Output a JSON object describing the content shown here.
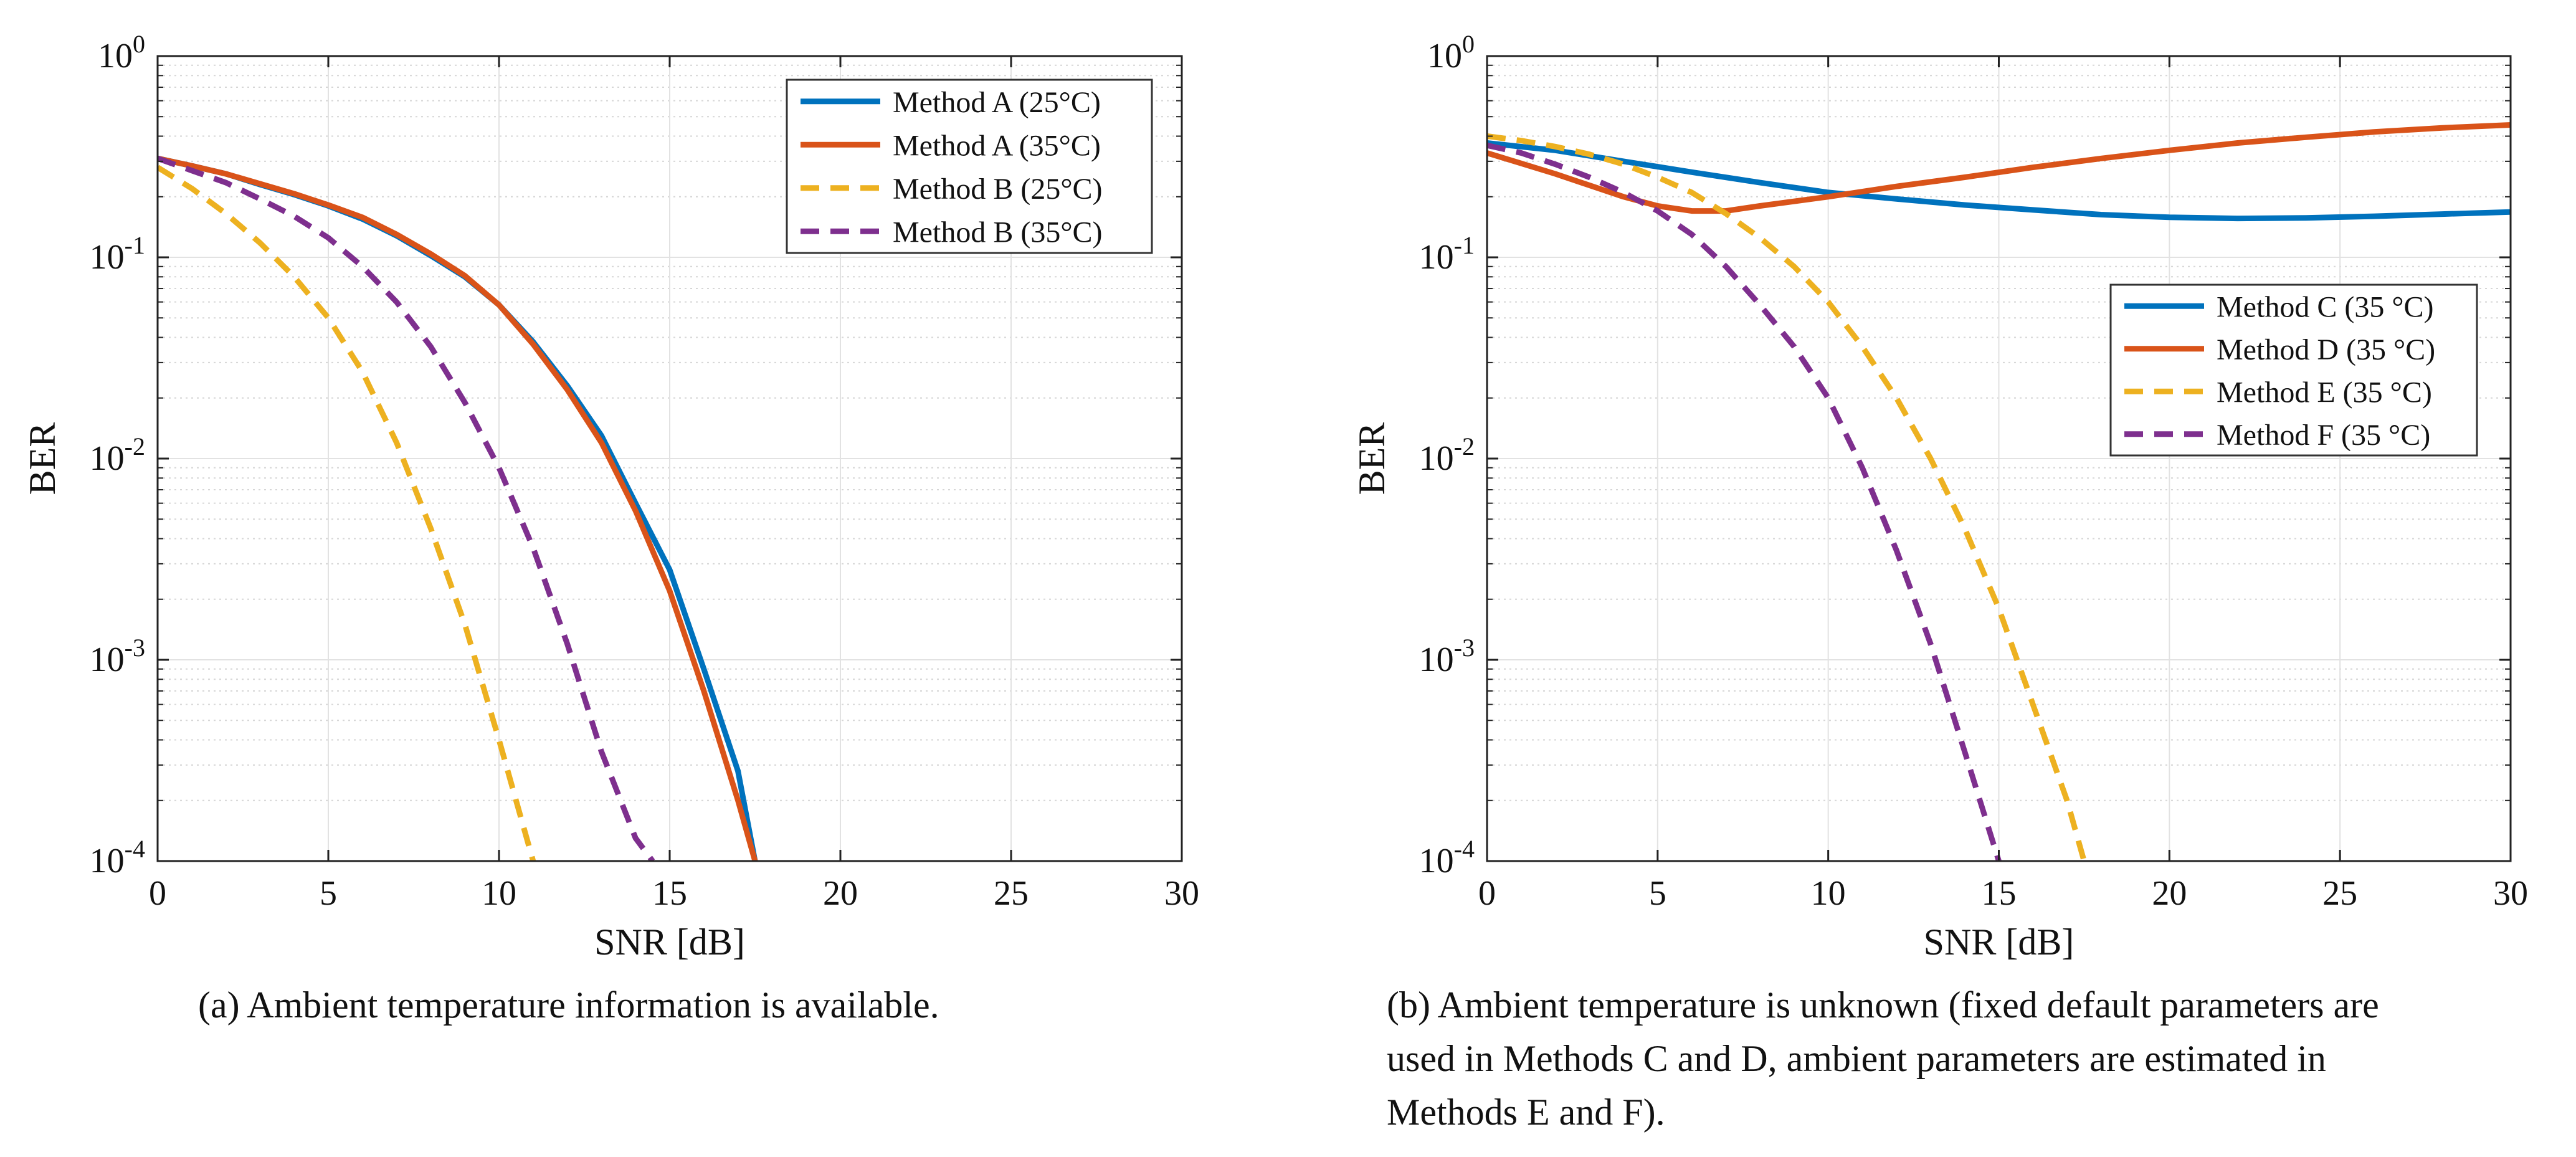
{
  "chart_data": [
    {
      "type": "line",
      "id": "a",
      "xlabel": "SNR [dB]",
      "ylabel": "BER",
      "xlim": [
        0,
        30
      ],
      "ylim": [
        0.0001,
        1
      ],
      "yscale": "log",
      "grid": true,
      "xticks": [
        "0",
        "5",
        "10",
        "15",
        "20",
        "25",
        "30"
      ],
      "yticks": [
        {
          "base": "10",
          "exp": "-4"
        },
        {
          "base": "10",
          "exp": "-3"
        },
        {
          "base": "10",
          "exp": "-2"
        },
        {
          "base": "10",
          "exp": "-1"
        },
        {
          "base": "10",
          "exp": "0"
        }
      ],
      "legend_position": "top-right",
      "series": [
        {
          "name": "Method A (25°C)",
          "color": "#0072BD",
          "dash": "solid",
          "x": [
            0,
            1,
            2,
            3,
            4,
            5,
            6,
            7,
            8,
            9,
            10,
            11,
            12,
            13,
            14,
            15,
            16,
            17,
            17.5
          ],
          "y": [
            0.31,
            0.285,
            0.26,
            0.23,
            0.205,
            0.18,
            0.155,
            0.128,
            0.102,
            0.08,
            0.058,
            0.038,
            0.023,
            0.013,
            0.006,
            0.0028,
            0.0009,
            0.00028,
            0.0001
          ]
        },
        {
          "name": "Method A (35°C)",
          "color": "#D95319",
          "dash": "solid",
          "x": [
            0,
            1,
            2,
            3,
            4,
            5,
            6,
            7,
            8,
            9,
            10,
            11,
            12,
            13,
            14,
            15,
            16,
            17,
            17.5
          ],
          "y": [
            0.31,
            0.285,
            0.26,
            0.232,
            0.207,
            0.182,
            0.158,
            0.13,
            0.104,
            0.081,
            0.058,
            0.037,
            0.022,
            0.012,
            0.0055,
            0.0022,
            0.0007,
            0.0002,
            0.0001
          ]
        },
        {
          "name": "Method B (25°C)",
          "color": "#EDB120",
          "dash": "dashed",
          "x": [
            0,
            1,
            2,
            3,
            4,
            5,
            6,
            7,
            8,
            9,
            10,
            11
          ],
          "y": [
            0.28,
            0.22,
            0.165,
            0.118,
            0.08,
            0.05,
            0.027,
            0.012,
            0.0045,
            0.0015,
            0.0004,
            0.0001
          ]
        },
        {
          "name": "Method B (35°C)",
          "color": "#7E2F8E",
          "dash": "dashed",
          "x": [
            0,
            1,
            2,
            3,
            4,
            5,
            6,
            7,
            8,
            9,
            10,
            11,
            12,
            13,
            14,
            14.5
          ],
          "y": [
            0.31,
            0.27,
            0.235,
            0.195,
            0.16,
            0.125,
            0.09,
            0.06,
            0.036,
            0.019,
            0.009,
            0.0036,
            0.0012,
            0.00035,
            0.00013,
            0.0001
          ]
        }
      ]
    },
    {
      "type": "line",
      "id": "b",
      "xlabel": "SNR [dB]",
      "ylabel": "BER",
      "xlim": [
        0,
        30
      ],
      "ylim": [
        0.0001,
        1
      ],
      "yscale": "log",
      "grid": true,
      "xticks": [
        "0",
        "5",
        "10",
        "15",
        "20",
        "25",
        "30"
      ],
      "yticks": [
        {
          "base": "10",
          "exp": "-4"
        },
        {
          "base": "10",
          "exp": "-3"
        },
        {
          "base": "10",
          "exp": "-2"
        },
        {
          "base": "10",
          "exp": "-1"
        },
        {
          "base": "10",
          "exp": "0"
        }
      ],
      "legend_position": "right",
      "series": [
        {
          "name": "Method C (35 °C)",
          "color": "#0072BD",
          "dash": "solid",
          "x": [
            0,
            2,
            4,
            6,
            8,
            10,
            12,
            14,
            16,
            18,
            20,
            22,
            24,
            26,
            28,
            30
          ],
          "y": [
            0.37,
            0.34,
            0.3,
            0.265,
            0.235,
            0.21,
            0.195,
            0.182,
            0.172,
            0.163,
            0.158,
            0.156,
            0.157,
            0.16,
            0.164,
            0.168
          ]
        },
        {
          "name": "Method D (35 °C)",
          "color": "#D95319",
          "dash": "solid",
          "x": [
            0,
            2,
            4,
            5,
            6,
            7,
            8,
            10,
            12,
            14,
            16,
            18,
            20,
            22,
            24,
            26,
            28,
            30
          ],
          "y": [
            0.33,
            0.26,
            0.2,
            0.18,
            0.17,
            0.17,
            0.18,
            0.2,
            0.225,
            0.25,
            0.28,
            0.31,
            0.34,
            0.37,
            0.395,
            0.42,
            0.44,
            0.455
          ]
        },
        {
          "name": "Method E (35 °C)",
          "color": "#EDB120",
          "dash": "dashed",
          "x": [
            0,
            1,
            2,
            3,
            4,
            5,
            6,
            7,
            8,
            9,
            10,
            11,
            12,
            13,
            14,
            15,
            16,
            17,
            17.5
          ],
          "y": [
            0.4,
            0.38,
            0.355,
            0.325,
            0.29,
            0.25,
            0.21,
            0.165,
            0.125,
            0.09,
            0.06,
            0.036,
            0.02,
            0.01,
            0.0045,
            0.0018,
            0.0006,
            0.0002,
            0.0001
          ]
        },
        {
          "name": "Method F (35 °C)",
          "color": "#7E2F8E",
          "dash": "dashed",
          "x": [
            0,
            1,
            2,
            3,
            4,
            5,
            6,
            7,
            8,
            9,
            10,
            11,
            12,
            13,
            14,
            15
          ],
          "y": [
            0.36,
            0.33,
            0.29,
            0.25,
            0.21,
            0.17,
            0.13,
            0.09,
            0.058,
            0.036,
            0.02,
            0.009,
            0.0035,
            0.0012,
            0.00035,
            0.0001
          ]
        }
      ]
    }
  ],
  "captions": {
    "a": "(a) Ambient temperature information is available.",
    "b_line1": "(b) Ambient temperature is unknown (fixed default parameters are",
    "b_line2": "used in Methods C and D, ambient parameters are estimated in",
    "b_line3": "Methods E and F)."
  }
}
